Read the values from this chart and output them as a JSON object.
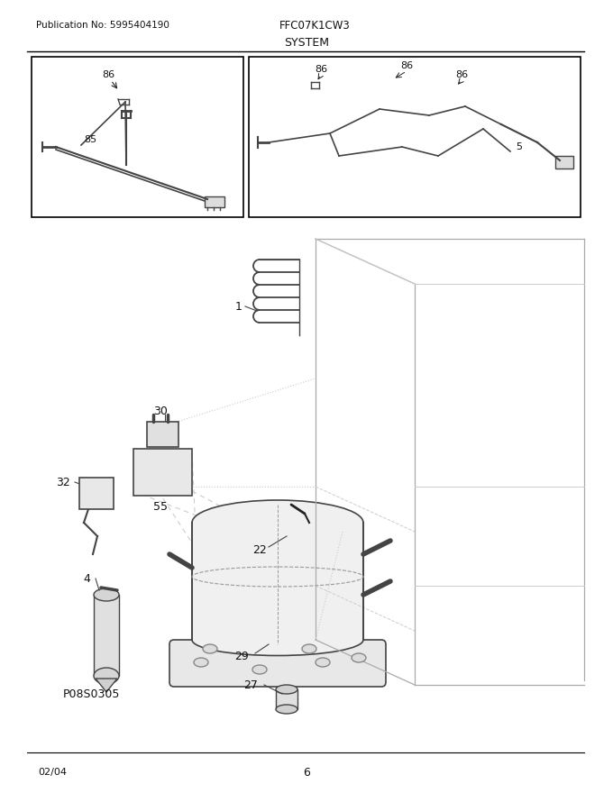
{
  "title": "SYSTEM",
  "pub_no": "Publication No: 5995404190",
  "model": "FFC07K1CW3",
  "date": "02/04",
  "page": "6",
  "part_code": "P08S0305",
  "bg_color": "#ffffff",
  "line_color": "#444444",
  "light_line": "#aaaaaa",
  "dash_color": "#bbbbbb"
}
